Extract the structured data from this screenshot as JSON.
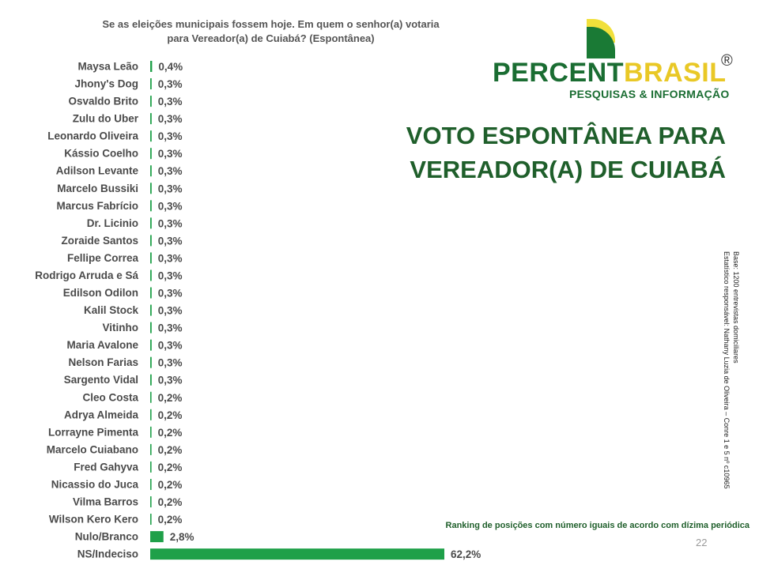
{
  "question": {
    "line1": "Se as eleições municipais fossem hoje. Em quem o senhor(a) votaria",
    "line2": "para Vereador(a) de Cuiabá? (Espontânea)"
  },
  "logo": {
    "brand_part1": "PERCENT",
    "brand_part2": "BRASIL",
    "registered_mark": "®",
    "tagline": "PESQUISAS & INFORMAÇÃO"
  },
  "title": {
    "line1": "VOTO ESPONTÂNEA PARA",
    "line2": "VEREADOR(A) DE CUIABÁ"
  },
  "note": {
    "line1": "Base: 1200 entrevistas domiciliares",
    "line2": "Estatístico responsável: Nathany Luzia de Oliveira – Conre 1 e 5 nº c10965"
  },
  "ranking_note": "Ranking de posições com número iguais de acordo com dízima periódica",
  "page_number": "22",
  "colors": {
    "bar": "#1fa049",
    "brand_green": "#1a6d32",
    "brand_yellow": "#e9c826",
    "title_green": "#1f5f2b"
  },
  "chart_data": {
    "type": "bar",
    "orientation": "horizontal",
    "title": "Se as eleições municipais fossem hoje. Em quem o senhor(a) votaria para Vereador(a) de Cuiabá? (Espontânea)",
    "categories": [
      "Maysa Leão",
      "Jhony's Dog",
      "Osvaldo Brito",
      "Zulu do Uber",
      "Leonardo Oliveira",
      "Kássio Coelho",
      "Adilson Levante",
      "Marcelo Bussiki",
      "Marcus Fabrício",
      "Dr. Licinio",
      "Zoraide Santos",
      "Fellipe Correa",
      "Rodrigo Arruda e Sá",
      "Edilson Odilon",
      "Kalil Stock",
      "Vitinho",
      "Maria Avalone",
      "Nelson Farias",
      "Sargento Vidal",
      "Cleo Costa",
      "Adrya Almeida",
      "Lorrayne Pimenta",
      "Marcelo Cuiabano",
      "Fred Gahyva",
      "Nicassio do Juca",
      "Vilma Barros",
      "Wilson Kero Kero",
      "Nulo/Branco",
      "NS/Indeciso"
    ],
    "values": [
      0.4,
      0.3,
      0.3,
      0.3,
      0.3,
      0.3,
      0.3,
      0.3,
      0.3,
      0.3,
      0.3,
      0.3,
      0.3,
      0.3,
      0.3,
      0.3,
      0.3,
      0.3,
      0.3,
      0.2,
      0.2,
      0.2,
      0.2,
      0.2,
      0.2,
      0.2,
      0.2,
      2.8,
      62.2
    ],
    "labels": [
      "0,4%",
      "0,3%",
      "0,3%",
      "0,3%",
      "0,3%",
      "0,3%",
      "0,3%",
      "0,3%",
      "0,3%",
      "0,3%",
      "0,3%",
      "0,3%",
      "0,3%",
      "0,3%",
      "0,3%",
      "0,3%",
      "0,3%",
      "0,3%",
      "0,3%",
      "0,2%",
      "0,2%",
      "0,2%",
      "0,2%",
      "0,2%",
      "0,2%",
      "0,2%",
      "0,2%",
      "2,8%",
      "62,2%"
    ],
    "xlim": [
      0,
      62.2
    ],
    "grid": false,
    "legend": "none"
  }
}
